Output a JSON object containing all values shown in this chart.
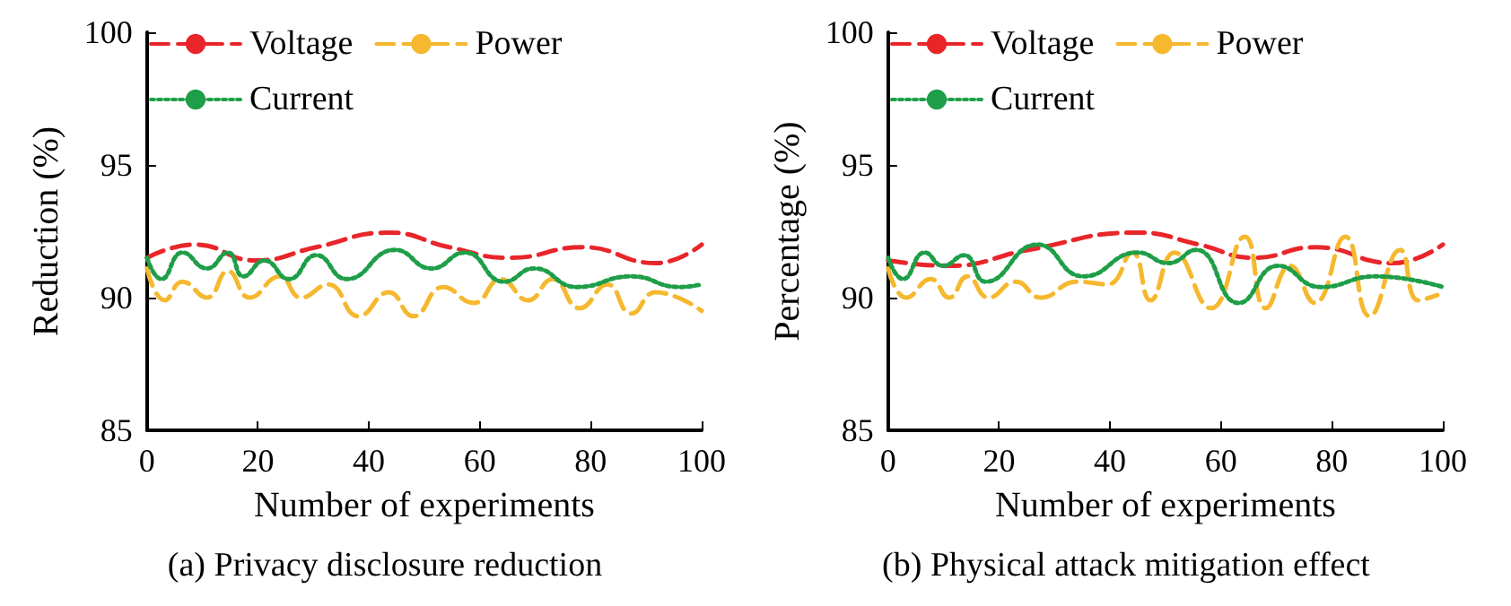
{
  "chart_data": [
    {
      "type": "line",
      "title": "(a) Privacy disclosure reduction",
      "xlabel": "Number of experiments",
      "ylabel": "Reduction (%)",
      "xlim": [
        0,
        100
      ],
      "xticks": [
        0,
        20,
        40,
        60,
        80,
        100
      ],
      "ylim": [
        85,
        100
      ],
      "yticks": [
        85,
        90,
        95,
        100
      ],
      "grid": false,
      "legend": "top",
      "marker": "none",
      "series": [
        {
          "name": "Voltage",
          "color": "#e8262a",
          "line_style": "dashed",
          "x": [
            0,
            8.6,
            19.6,
            30.5,
            43.6,
            54.5,
            65.5,
            78.6,
            91.7,
            100
          ],
          "values": [
            91.5,
            92.0,
            91.4,
            91.9,
            92.45,
            91.9,
            91.5,
            91.9,
            91.3,
            92.0
          ]
        },
        {
          "name": "Power",
          "color": "#f5b82e",
          "line_style": "dashed",
          "x": [
            0,
            3.2,
            6.4,
            10.8,
            14.6,
            18.5,
            23.9,
            27.8,
            32.7,
            38.1,
            43.6,
            48,
            53.4,
            58.9,
            63.8,
            68.7,
            73.1,
            78,
            83,
            87.3,
            91.7,
            100
          ],
          "values": [
            91.1,
            89.9,
            90.6,
            90.0,
            91.0,
            90.0,
            90.8,
            90.0,
            90.5,
            89.3,
            90.2,
            89.3,
            90.4,
            89.8,
            90.7,
            89.9,
            90.7,
            89.6,
            90.5,
            89.4,
            90.2,
            89.5
          ]
        },
        {
          "name": "Current",
          "color": "#1e9e48",
          "line_style": "dotted",
          "x": [
            0,
            2.6,
            6.4,
            10.8,
            14.6,
            17.4,
            21.2,
            25.6,
            30.5,
            36,
            44.7,
            51.3,
            57.3,
            64.4,
            69.8,
            77.5,
            87.3,
            96,
            100
          ],
          "values": [
            91.5,
            90.7,
            91.7,
            91.1,
            91.7,
            90.8,
            91.4,
            90.7,
            91.6,
            90.7,
            91.8,
            91.1,
            91.7,
            90.6,
            91.1,
            90.4,
            90.8,
            90.4,
            90.5
          ]
        }
      ]
    },
    {
      "type": "line",
      "title": "(b) Physical attack mitigation effect",
      "xlabel": "Number of experiments",
      "ylabel": "Percentage (%)",
      "xlim": [
        0,
        100
      ],
      "xticks": [
        0,
        20,
        40,
        60,
        80,
        100
      ],
      "ylim": [
        85,
        100
      ],
      "yticks": [
        85,
        90,
        95,
        100
      ],
      "grid": false,
      "legend": "top",
      "marker": "none",
      "series": [
        {
          "name": "Voltage",
          "color": "#e8262a",
          "line_style": "dashed",
          "x": [
            0,
            11,
            25.3,
            45,
            56,
            66,
            77,
            91,
            100
          ],
          "values": [
            91.4,
            91.2,
            91.8,
            92.45,
            92.0,
            91.5,
            91.9,
            91.3,
            92.0
          ]
        },
        {
          "name": "Power",
          "color": "#f5b82e",
          "line_style": "dashed",
          "x": [
            0,
            3.3,
            7.7,
            11,
            14.3,
            18.1,
            23,
            27.5,
            34,
            39.6,
            44,
            47.3,
            51.6,
            58.2,
            64.3,
            68.1,
            72.5,
            76.9,
            82.4,
            86.8,
            92.3,
            95.6,
            99
          ],
          "values": [
            91.1,
            90.0,
            90.7,
            90.0,
            90.8,
            90.0,
            90.6,
            90.0,
            90.6,
            90.5,
            91.7,
            89.9,
            91.7,
            89.6,
            92.3,
            89.6,
            91.2,
            89.8,
            92.3,
            89.3,
            91.8,
            89.9,
            90.1
          ]
        },
        {
          "name": "Current",
          "color": "#1e9e48",
          "line_style": "dotted",
          "x": [
            0,
            2.7,
            6.6,
            9.9,
            13.7,
            17.6,
            26.9,
            35.2,
            45,
            50.5,
            55.5,
            63.2,
            70.3,
            78,
            87.9,
            100
          ],
          "values": [
            91.5,
            90.7,
            91.7,
            91.2,
            91.6,
            90.6,
            92.0,
            90.8,
            91.7,
            91.3,
            91.8,
            89.8,
            91.2,
            90.4,
            90.8,
            90.4
          ]
        }
      ]
    }
  ]
}
